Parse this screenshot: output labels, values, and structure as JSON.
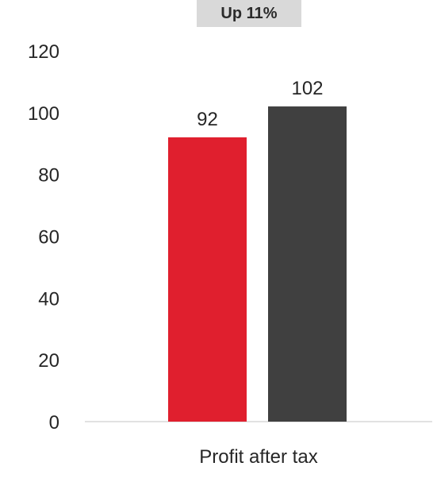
{
  "badge": {
    "label": "Up 11%",
    "background": "#d9d9d9"
  },
  "chart_data": {
    "type": "bar",
    "categories": [
      "Profit after tax"
    ],
    "series": [
      {
        "values": [
          92
        ],
        "color": "#e01f2e"
      },
      {
        "values": [
          102
        ],
        "color": "#404040"
      }
    ],
    "data_labels": [
      "92",
      "102"
    ],
    "ylim": [
      0,
      120
    ],
    "yticks": [
      0,
      20,
      40,
      60,
      80,
      100,
      120
    ],
    "ytick_labels": [
      "0",
      "20",
      "40",
      "60",
      "80",
      "100",
      "120"
    ],
    "grid": false,
    "legend": "none"
  }
}
